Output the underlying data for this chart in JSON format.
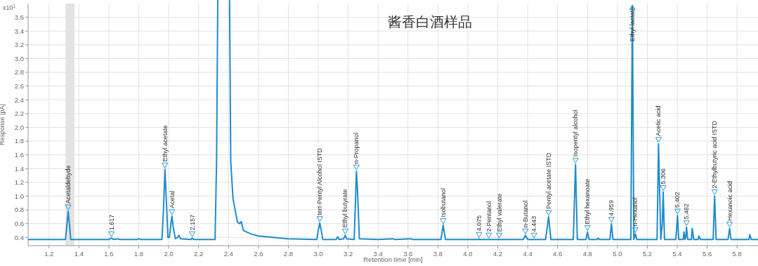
{
  "chart_data": {
    "type": "line",
    "title": "酱香白酒样品",
    "xlabel": "Retention time [min]",
    "ylabel": "Response [pA]",
    "xlim": [
      1.06,
      5.94
    ],
    "ylim": [
      0.28,
      3.8
    ],
    "xticks": [
      1.2,
      1.4,
      1.6,
      1.8,
      {
        "value": 2,
        "label": "2.0"
      },
      2.2,
      2.4,
      2.6,
      2.8,
      {
        "value": 3,
        "label": "3.0"
      },
      3.2,
      3.4,
      3.6,
      3.8,
      {
        "value": 4,
        "label": "4.0"
      },
      4.2,
      4.4,
      4.6,
      4.8,
      {
        "value": 5,
        "label": "5.0"
      },
      5.2,
      5.4,
      5.6,
      5.8
    ],
    "yticks": [
      0.4,
      0.6,
      0.8,
      {
        "value": 1,
        "label": "1.0"
      },
      1.2,
      1.4,
      1.6,
      1.8,
      {
        "value": 2,
        "label": "2.0"
      },
      2.2,
      2.4,
      2.6,
      2.8,
      {
        "value": 3,
        "label": "3.0"
      },
      3.2,
      3.4,
      3.6
    ],
    "grid": true,
    "marker": "none",
    "line_style": "solid",
    "bands": [
      {
        "axis": "x",
        "from": 1.31,
        "to": 1.37,
        "color": "#e3e3e3"
      }
    ],
    "series": [
      {
        "color": "#1f8ccc",
        "x": [
          1.06,
          1.31,
          1.32,
          1.328,
          1.336,
          1.345,
          1.6,
          1.617,
          1.63,
          1.66,
          1.67,
          1.79,
          1.8,
          1.81,
          1.955,
          1.965,
          1.975,
          1.985,
          1.995,
          2.005,
          2.015,
          2.022,
          2.03,
          2.045,
          2.06,
          2.068,
          2.08,
          2.15,
          2.157,
          2.165,
          2.31,
          2.32,
          2.33,
          2.405,
          2.415,
          2.43,
          2.46,
          2.475,
          2.485,
          2.5,
          2.55,
          2.6,
          2.7,
          2.8,
          2.99,
          3.0,
          3.01,
          3.02,
          3.03,
          3.12,
          3.13,
          3.14,
          3.17,
          3.18,
          3.19,
          3.24,
          3.25,
          3.255,
          3.262,
          3.275,
          3.4,
          3.5,
          3.51,
          3.62,
          3.63,
          3.82,
          3.835,
          3.85,
          4.07,
          4.075,
          4.08,
          4.37,
          4.385,
          4.4,
          4.52,
          4.54,
          4.555,
          4.705,
          4.72,
          4.732,
          4.79,
          4.8,
          4.81,
          4.865,
          4.87,
          4.88,
          4.95,
          4.96,
          4.97,
          5.09,
          5.1,
          5.11,
          5.12,
          5.13,
          5.265,
          5.275,
          5.29,
          5.3,
          5.306,
          5.315,
          5.39,
          5.395,
          5.402,
          5.41,
          5.44,
          5.445,
          5.452,
          5.457,
          5.462,
          5.47,
          5.495,
          5.5,
          5.51,
          5.54,
          5.545,
          5.555,
          5.64,
          5.65,
          5.66,
          5.74,
          5.75,
          5.76,
          5.88,
          5.885,
          5.895,
          5.94
        ],
        "values": [
          0.37,
          0.37,
          0.6,
          0.78,
          0.6,
          0.37,
          0.37,
          0.39,
          0.37,
          0.38,
          0.37,
          0.37,
          0.38,
          0.37,
          0.37,
          0.8,
          1.39,
          0.9,
          0.4,
          0.4,
          0.6,
          0.71,
          0.55,
          0.38,
          0.4,
          0.43,
          0.38,
          0.37,
          0.39,
          0.37,
          0.37,
          1.5,
          null,
          null,
          1.5,
          0.96,
          0.62,
          0.6,
          0.63,
          0.5,
          0.45,
          0.42,
          0.4,
          0.38,
          0.37,
          0.5,
          0.61,
          0.5,
          0.37,
          0.37,
          0.41,
          0.37,
          0.38,
          0.43,
          0.38,
          0.37,
          1.0,
          1.36,
          1.1,
          0.38,
          0.37,
          0.38,
          0.37,
          0.38,
          0.37,
          0.37,
          0.58,
          0.37,
          0.37,
          0.38,
          0.37,
          0.37,
          0.43,
          0.37,
          0.37,
          0.7,
          0.37,
          0.37,
          1.46,
          0.37,
          0.37,
          0.48,
          0.37,
          0.37,
          0.39,
          0.37,
          0.37,
          0.6,
          0.37,
          0.37,
          3.77,
          0.37,
          0.45,
          0.37,
          0.37,
          1.76,
          0.37,
          0.6,
          1.06,
          0.37,
          0.37,
          0.5,
          0.72,
          0.37,
          0.37,
          0.48,
          0.37,
          0.4,
          0.55,
          0.37,
          0.37,
          0.53,
          0.37,
          0.37,
          0.42,
          0.37,
          0.37,
          1.0,
          0.37,
          0.37,
          0.53,
          0.37,
          0.37,
          0.44,
          0.37,
          0.37
        ]
      }
    ],
    "annotations": [
      "x10$^{1}$",
      {
        "text": "Acetaldehyde",
        "x": 1.328,
        "y": 0.78
      },
      {
        "text": "1.617",
        "x": 1.617,
        "y": 0.39
      },
      {
        "text": "Ethyl acetate",
        "x": 1.975,
        "y": 1.39
      },
      {
        "text": "Acetal",
        "x": 2.022,
        "y": 0.71
      },
      {
        "text": "2.157",
        "x": 2.157,
        "y": 0.39
      },
      {
        "text": "tert-Pentyl Alcohol ISTD",
        "x": 3.01,
        "y": 0.61
      },
      {
        "text": "Ethyl butyrate",
        "x": 3.18,
        "y": 0.43
      },
      {
        "text": "n-Propanol",
        "x": 3.255,
        "y": 1.36
      },
      {
        "text": "Isobutanol",
        "x": 3.835,
        "y": 0.58
      },
      {
        "text": "4.075",
        "x": 4.075,
        "y": 0.38
      },
      {
        "text": "2-Pentanol",
        "x": 4.14,
        "y": 0.37
      },
      {
        "text": "Ethyl valerate",
        "x": 4.21,
        "y": 0.37
      },
      {
        "text": "n-Butanol",
        "x": 4.385,
        "y": 0.43
      },
      {
        "text": "4.443",
        "x": 4.443,
        "y": 0.37
      },
      {
        "text": "Pentyl acetate ISTD",
        "x": 4.54,
        "y": 0.7
      },
      {
        "text": "Isopentyl alcohol",
        "x": 4.72,
        "y": 1.46
      },
      {
        "text": "Ethyl hexanoate",
        "x": 4.8,
        "y": 0.48
      },
      {
        "text": "4.959",
        "x": 4.96,
        "y": 0.6
      },
      {
        "text": "Ethyl lactate",
        "x": 5.1,
        "y": 3.77
      },
      {
        "text": "n-Hexanol",
        "x": 5.12,
        "y": 0.45
      },
      {
        "text": "Acetic acid",
        "x": 5.275,
        "y": 1.76
      },
      {
        "text": "5.306",
        "x": 5.306,
        "y": 1.06
      },
      {
        "text": "5.402",
        "x": 5.402,
        "y": 0.72
      },
      {
        "text": "5.462",
        "x": 5.462,
        "y": 0.55
      },
      {
        "text": "2-Ethylbutyric acid ISTD",
        "x": 5.65,
        "y": 1.0
      },
      {
        "text": "Hexanoic acid",
        "x": 5.75,
        "y": 0.53
      }
    ]
  }
}
